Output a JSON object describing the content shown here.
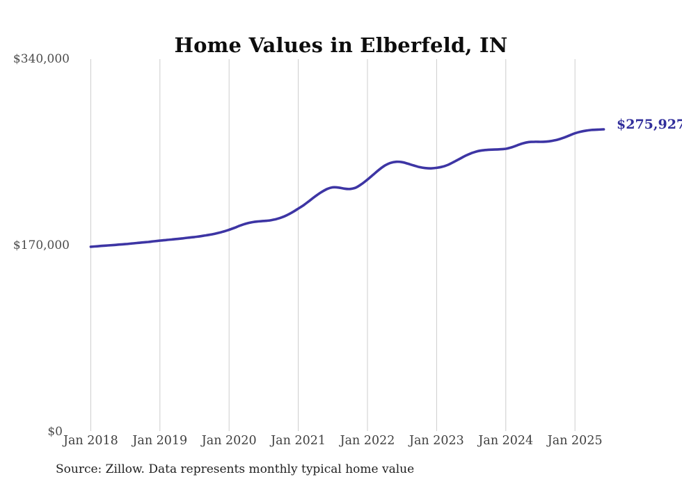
{
  "title": "Home Values in Elberfeld, IN",
  "source_note": "Source: Zillow. Data represents monthly typical home value",
  "end_label": "$275,927",
  "colors": {
    "line": "#3d35a4",
    "end_label": "#312e9b",
    "gridline": "#cccccc",
    "title_text": "#0d0d0d",
    "axis_text": "#4c4c4c",
    "source_text": "#1f1f1f",
    "background": "#ffffff"
  },
  "chart_data": {
    "type": "line",
    "title": "Home Values in Elberfeld, IN",
    "series_name": "Typical home value (monthly)",
    "x_start": "Jan 2018",
    "x_end": "Jun 2025",
    "frequency": "monthly",
    "x_tick_labels": [
      "Jan 2018",
      "Jan 2019",
      "Jan 2020",
      "Jan 2021",
      "Jan 2022",
      "Jan 2023",
      "Jan 2024",
      "Jan 2025"
    ],
    "y_tick_labels": [
      "$0",
      "$170,000",
      "$340,000"
    ],
    "y_ticks": [
      0,
      170000,
      340000
    ],
    "ylim": [
      0,
      340000
    ],
    "grid": "vertical-yearly-only",
    "legend": "none",
    "final_value": 275927,
    "values": [
      168800,
      169200,
      169600,
      170000,
      170400,
      170800,
      171200,
      171700,
      172200,
      172700,
      173200,
      173800,
      174400,
      174900,
      175400,
      175900,
      176500,
      177100,
      177700,
      178400,
      179200,
      180100,
      181200,
      182600,
      184300,
      186200,
      188300,
      190000,
      191200,
      191900,
      192300,
      192800,
      193800,
      195300,
      197500,
      200300,
      203600,
      207000,
      211000,
      215000,
      218600,
      221500,
      223000,
      222800,
      221800,
      221500,
      222800,
      226000,
      230100,
      234500,
      239000,
      242800,
      245300,
      246300,
      246000,
      244600,
      243000,
      241500,
      240600,
      240300,
      240800,
      241800,
      243600,
      246200,
      249000,
      251800,
      254100,
      255800,
      256800,
      257300,
      257500,
      257700,
      258200,
      259500,
      261400,
      263200,
      264300,
      264600,
      264500,
      264700,
      265400,
      266500,
      268200,
      270300,
      272300,
      273800,
      274800,
      275400,
      275700,
      275927
    ]
  }
}
